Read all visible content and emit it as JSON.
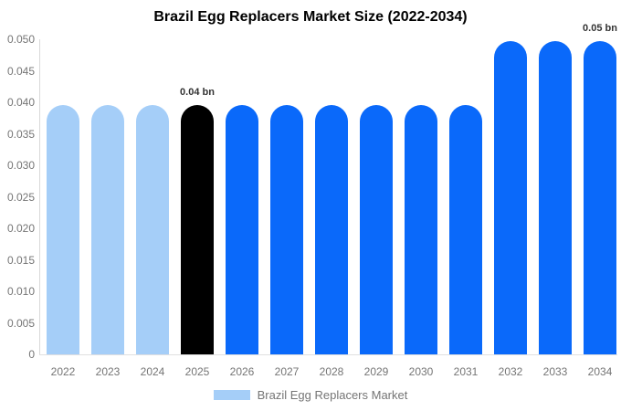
{
  "title": "Brazil Egg Replacers Market Size (2022-2034)",
  "legend": {
    "label": "Brazil Egg Replacers Market",
    "swatch_color": "#a5cef8"
  },
  "colors": {
    "light_blue": "#a5cef8",
    "bright_blue": "#0a69fa",
    "black": "#000000",
    "axis_text": "#757575",
    "axis_line": "#d9d9d9",
    "annotation_text": "#333333",
    "background": "#ffffff"
  },
  "chart_data": {
    "type": "bar",
    "title": "Brazil Egg Replacers Market Size (2022-2034)",
    "xlabel": "",
    "ylabel": "",
    "units": "bn",
    "grid": false,
    "legend_position": "bottom",
    "ylim": [
      0,
      0.05
    ],
    "y_ticks": [
      "0.050",
      "0.045",
      "0.040",
      "0.035",
      "0.030",
      "0.025",
      "0.020",
      "0.015",
      "0.010",
      "0.005",
      "0"
    ],
    "categories": [
      "2022",
      "2023",
      "2024",
      "2025",
      "2026",
      "2027",
      "2028",
      "2029",
      "2030",
      "2031",
      "2032",
      "2033",
      "2034"
    ],
    "series": [
      {
        "name": "Brazil Egg Replacers Market",
        "values": [
          0.0396,
          0.0396,
          0.0396,
          0.0396,
          0.0396,
          0.0396,
          0.0396,
          0.0396,
          0.0396,
          0.0396,
          0.0497,
          0.0497,
          0.0497
        ]
      }
    ],
    "bar_colors": [
      "#a5cef8",
      "#a5cef8",
      "#a5cef8",
      "#000000",
      "#0a69fa",
      "#0a69fa",
      "#0a69fa",
      "#0a69fa",
      "#0a69fa",
      "#0a69fa",
      "#0a69fa",
      "#0a69fa",
      "#0a69fa"
    ],
    "annotations": [
      {
        "text": "0.04 bn",
        "category": "2025"
      },
      {
        "text": "0.05 bn",
        "category": "2034"
      }
    ]
  }
}
